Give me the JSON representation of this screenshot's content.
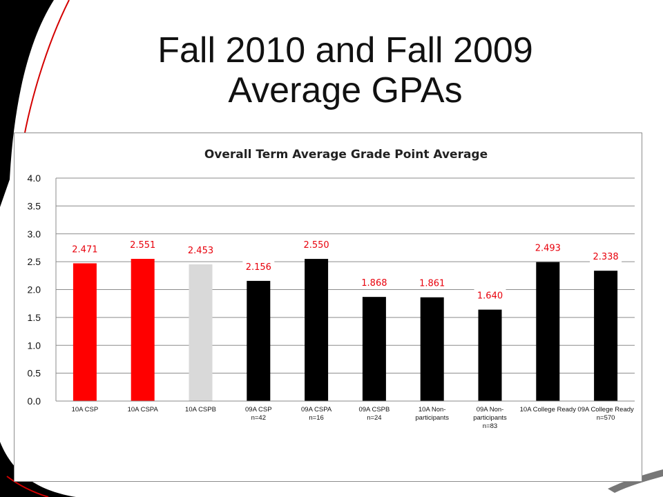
{
  "slide": {
    "title_line1": "Fall 2010 and Fall 2009",
    "title_line2": "Average GPAs"
  },
  "colors": {
    "red": "#ff0000",
    "gray": "#d9d9d9",
    "black": "#000000",
    "label": "#e8000b"
  },
  "chart_data": {
    "type": "bar",
    "title": "Overall Term Average Grade Point Average",
    "xlabel": "",
    "ylabel": "",
    "ylim": [
      0,
      4.0
    ],
    "yticks": [
      "0.0",
      "0.5",
      "1.0",
      "1.5",
      "2.0",
      "2.5",
      "3.0",
      "3.5",
      "4.0"
    ],
    "grid": true,
    "categories": [
      [
        "10A CSP"
      ],
      [
        "10A CSPA"
      ],
      [
        "10A CSPB"
      ],
      [
        "09A CSP",
        "n=42"
      ],
      [
        "09A CSPA",
        "n=16"
      ],
      [
        "09A CSPB",
        "n=24"
      ],
      [
        "10A Non-",
        "participants"
      ],
      [
        "09A Non-",
        "participants",
        "n=83"
      ],
      [
        "10A College Ready"
      ],
      [
        "09A College Ready",
        "n=570"
      ]
    ],
    "values": [
      2.471,
      2.551,
      2.453,
      2.156,
      2.55,
      1.868,
      1.861,
      1.64,
      2.493,
      2.338
    ],
    "data_labels": [
      "2.471",
      "2.551",
      "2.453",
      "2.156",
      "2.550",
      "1.868",
      "1.861",
      "1.640",
      "2.493",
      "2.338"
    ],
    "bar_colors": [
      "red",
      "red",
      "gray",
      "black",
      "black",
      "black",
      "black",
      "black",
      "black",
      "black"
    ]
  }
}
